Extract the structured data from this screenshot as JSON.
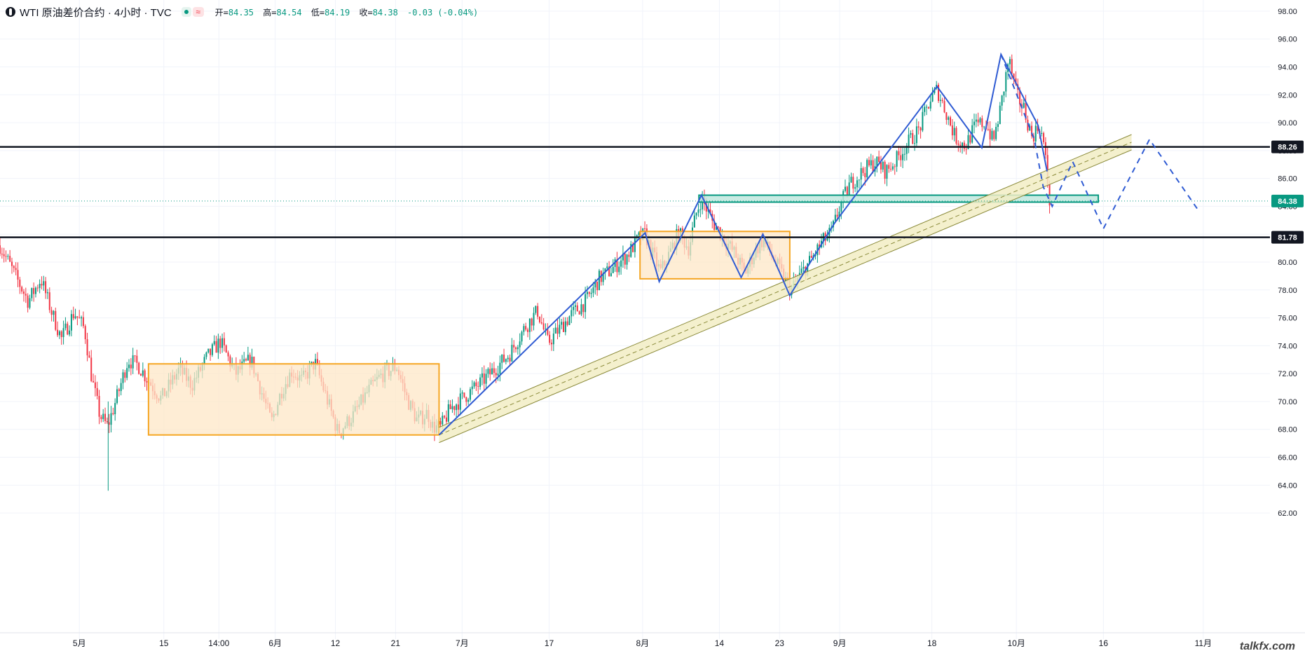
{
  "legend": {
    "title": "WTI 原油差价合约 · 4小时 · TVC",
    "open_label": "开=",
    "open": "84.35",
    "high_label": "高=",
    "high": "84.54",
    "low_label": "低=",
    "low": "84.19",
    "close_label": "收=",
    "close": "84.38",
    "change": "-0.03 (-0.04%)"
  },
  "watermark": "talkfx.com",
  "colors": {
    "up": "#089981",
    "down": "#f23645",
    "box_fill": "#fde7c7",
    "box_stroke": "#f5a623",
    "zone_fill": "#bfe8de",
    "zone_stroke": "#089981",
    "zigzag": "#2f5bd3",
    "level_line": "#131722",
    "channel": "#8a8a3a",
    "channel_fill": "#f2edc4",
    "last_price": "#089981",
    "grid": "#f0f3fa"
  },
  "chart_data": {
    "type": "candlestick",
    "title": "",
    "xlabel": "",
    "ylabel": "",
    "ylim": [
      61,
      98.8
    ],
    "xlim": [
      0,
      1000
    ],
    "grid": true,
    "y_ticks": [
      "62.00",
      "64.00",
      "66.00",
      "68.00",
      "70.00",
      "72.00",
      "74.00",
      "76.00",
      "78.00",
      "80.00",
      "82.00",
      "84.00",
      "86.00",
      "88.00",
      "90.00",
      "92.00",
      "94.00",
      "96.00",
      "98.00"
    ],
    "x_ticks": [
      {
        "label": "5月",
        "x": 62
      },
      {
        "label": "15",
        "x": 128
      },
      {
        "label": "14:00",
        "x": 171
      },
      {
        "label": "6月",
        "x": 215
      },
      {
        "label": "12",
        "x": 262
      },
      {
        "label": "21",
        "x": 309
      },
      {
        "label": "7月",
        "x": 361
      },
      {
        "label": "17",
        "x": 429
      },
      {
        "label": "8月",
        "x": 502
      },
      {
        "label": "14",
        "x": 562
      },
      {
        "label": "23",
        "x": 609
      },
      {
        "label": "9月",
        "x": 656
      },
      {
        "label": "18",
        "x": 728
      },
      {
        "label": "10月",
        "x": 794
      },
      {
        "label": "16",
        "x": 862
      },
      {
        "label": "11月",
        "x": 940
      }
    ],
    "price_path": [
      [
        0,
        81.2
      ],
      [
        12,
        79.0
      ],
      [
        22,
        77.2
      ],
      [
        32,
        78.8
      ],
      [
        40,
        76.5
      ],
      [
        48,
        74.5
      ],
      [
        58,
        76.4
      ],
      [
        66,
        75.2
      ],
      [
        72,
        71.5
      ],
      [
        78,
        69.0
      ],
      [
        84,
        68.2
      ],
      [
        92,
        70.5
      ],
      [
        100,
        73.0
      ],
      [
        108,
        72.6
      ],
      [
        116,
        71.5
      ],
      [
        126,
        70.2
      ],
      [
        140,
        72.3
      ],
      [
        150,
        71.2
      ],
      [
        162,
        73.2
      ],
      [
        172,
        74.3
      ],
      [
        184,
        72.0
      ],
      [
        196,
        73.0
      ],
      [
        204,
        70.8
      ],
      [
        212,
        68.5
      ],
      [
        220,
        70.8
      ],
      [
        228,
        72.2
      ],
      [
        236,
        71.5
      ],
      [
        246,
        72.8
      ],
      [
        256,
        70.0
      ],
      [
        264,
        67.8
      ],
      [
        276,
        69.0
      ],
      [
        288,
        70.8
      ],
      [
        298,
        71.9
      ],
      [
        310,
        72.5
      ],
      [
        318,
        70.2
      ],
      [
        326,
        68.6
      ],
      [
        334,
        69.2
      ],
      [
        338,
        68.2
      ],
      [
        344,
        68.1
      ],
      [
        352,
        69.5
      ],
      [
        362,
        70.3
      ],
      [
        374,
        71.2
      ],
      [
        386,
        72.3
      ],
      [
        398,
        73.4
      ],
      [
        410,
        75.3
      ],
      [
        420,
        76.5
      ],
      [
        428,
        74.2
      ],
      [
        436,
        75.1
      ],
      [
        446,
        76.2
      ],
      [
        458,
        77.2
      ],
      [
        468,
        78.8
      ],
      [
        478,
        79.5
      ],
      [
        490,
        80.5
      ],
      [
        498,
        81.6
      ],
      [
        504,
        82.0
      ],
      [
        510,
        80.5
      ],
      [
        516,
        79.3
      ],
      [
        524,
        80.8
      ],
      [
        530,
        82.1
      ],
      [
        538,
        81.0
      ],
      [
        544,
        83.5
      ],
      [
        548,
        84.6
      ],
      [
        556,
        83.0
      ],
      [
        564,
        81.9
      ],
      [
        574,
        80.6
      ],
      [
        582,
        79.2
      ],
      [
        590,
        80.8
      ],
      [
        596,
        81.6
      ],
      [
        604,
        80.3
      ],
      [
        612,
        78.9
      ],
      [
        618,
        78.0
      ],
      [
        626,
        79.2
      ],
      [
        634,
        80.2
      ],
      [
        642,
        81.4
      ],
      [
        650,
        82.2
      ],
      [
        656,
        84.0
      ],
      [
        664,
        85.6
      ],
      [
        674,
        86.5
      ],
      [
        684,
        87.2
      ],
      [
        692,
        86.5
      ],
      [
        700,
        87.3
      ],
      [
        708,
        88.4
      ],
      [
        718,
        89.5
      ],
      [
        726,
        91.5
      ],
      [
        732,
        92.4
      ],
      [
        738,
        91.0
      ],
      [
        746,
        89.0
      ],
      [
        754,
        88.3
      ],
      [
        762,
        89.8
      ],
      [
        770,
        90.0
      ],
      [
        776,
        88.6
      ],
      [
        782,
        91.2
      ],
      [
        788,
        94.6
      ],
      [
        794,
        92.0
      ],
      [
        800,
        91.0
      ],
      [
        806,
        89.0
      ],
      [
        812,
        89.8
      ],
      [
        816,
        88.2
      ],
      [
        818,
        86.0
      ],
      [
        820,
        84.4
      ]
    ],
    "series": [
      {
        "kind": "horizontal_level",
        "value": 88.26,
        "label": "88.26"
      },
      {
        "kind": "horizontal_level",
        "value": 81.78,
        "label": "81.78"
      },
      {
        "kind": "last_price",
        "value": 84.38,
        "label": "84.38"
      },
      {
        "kind": "range_box",
        "x0": 116,
        "x1": 343,
        "y0": 67.6,
        "y1": 72.7
      },
      {
        "kind": "range_box",
        "x0": 500,
        "x1": 617,
        "y0": 78.8,
        "y1": 82.2
      },
      {
        "kind": "zone",
        "x0": 546,
        "x1": 858,
        "y0": 84.3,
        "y1": 84.8
      },
      {
        "kind": "channel",
        "points": [
          [
            343,
            67.6
          ],
          [
            884,
            88.6
          ]
        ],
        "width": 0.55
      },
      {
        "kind": "zigzag",
        "points": [
          [
            343,
            67.6
          ],
          [
            504,
            82.1
          ],
          [
            515,
            78.6
          ],
          [
            548,
            84.8
          ],
          [
            579,
            78.9
          ],
          [
            596,
            82.0
          ],
          [
            617,
            77.6
          ],
          [
            652,
            82.8
          ],
          [
            732,
            92.6
          ],
          [
            767,
            88.2
          ],
          [
            782,
            94.9
          ],
          [
            811,
            89.8
          ],
          [
            818,
            86.5
          ]
        ]
      },
      {
        "kind": "projection_dashed",
        "points": [
          [
            782,
            94.9
          ],
          [
            808,
            88.8
          ],
          [
            815,
            85.4
          ],
          [
            822,
            84.0
          ],
          [
            838,
            87.2
          ],
          [
            862,
            82.4
          ],
          [
            898,
            88.8
          ],
          [
            937,
            83.6
          ]
        ]
      }
    ]
  }
}
